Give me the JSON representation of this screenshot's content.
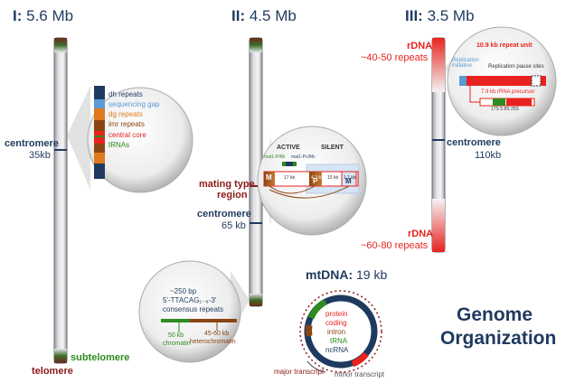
{
  "chromosomes": [
    {
      "numeral": "I:",
      "size": "5.6 Mb"
    },
    {
      "numeral": "II:",
      "size": "4.5 Mb"
    },
    {
      "numeral": "III:",
      "size": "3.5 Mb"
    }
  ],
  "chr1": {
    "centromere_label": "centromere",
    "centromere_size": "35kb",
    "subtelomere_label": "subtelomere",
    "telomere_label": "telomere",
    "legend": [
      {
        "label": "dh repeats",
        "color": "#1f3a5f"
      },
      {
        "label": "sequencing gap",
        "color": "#5b9bd5"
      },
      {
        "label": "dg repeats",
        "color": "#e07a1f"
      },
      {
        "label": "imr repeats",
        "color": "#8b4513"
      },
      {
        "label": "central core",
        "color": "#e8231f"
      },
      {
        "label": "tRNAs",
        "color": "#2e8b1f"
      }
    ]
  },
  "chr2": {
    "mating_type_label": "mating type",
    "mating_region_label": "region",
    "centromere_label": "centromere",
    "centromere_size": "65 kb",
    "active_label": "ACTIVE",
    "silent_label": "SILENT",
    "mat1_label": "mat1-P/Mi",
    "mat1_label2": "mat1-Pc/Mc",
    "box_17kb": "17 kb",
    "box_43kb": "4.3 kb",
    "box_15kb": "15 kb",
    "box_11kb": "1.1 kb",
    "letter_m": "M",
    "letter_p": "P",
    "telomere_text1": "~250 bp",
    "telomere_text2": "5'-TTACAG₁₋₈-3'",
    "telomere_text3": "consensus repeats",
    "chromatin_size": "50 kb",
    "chromatin_label": "chromatin",
    "hetero_size": "45-60 kb",
    "hetero_label": "heterochromatin"
  },
  "chr3": {
    "rdna_label": "rDNA",
    "rdna_top_repeats": "~40-50 repeats",
    "rdna_bottom_repeats": "~60-80 repeats",
    "centromere_label": "centromere",
    "centromere_size": "110kb",
    "repeat_unit_label": "10.9 kb repeat unit",
    "replication_initiation": "Replication initiation",
    "pause_sites": "Replication pause sites",
    "precursor_label": "7.9 kb rRNA precursor",
    "subunits_label": "17S 5.8S 25S"
  },
  "mtdna": {
    "label": "mtDNA:",
    "size": "19 kb",
    "legend": [
      {
        "label": "protein",
        "color": "#e8231f"
      },
      {
        "label": "coding",
        "color": "#e8231f"
      },
      {
        "label": "intron",
        "color": "#8b4513"
      },
      {
        "label": "tRNA",
        "color": "#2e8b1f"
      },
      {
        "label": "ncRNA",
        "color": "#1f3a5f"
      }
    ],
    "major_transcript": "major transcript",
    "minor_transcript": "minor transcript"
  },
  "title": {
    "line1": "Genome",
    "line2": "Organization"
  }
}
